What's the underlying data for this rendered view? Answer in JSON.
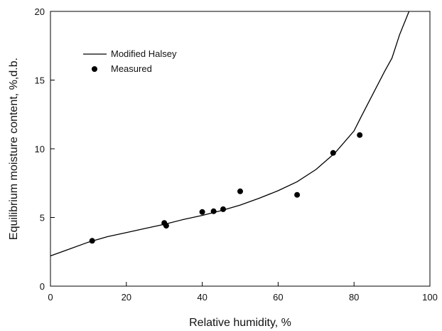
{
  "chart_data": {
    "type": "line",
    "title": "",
    "xlabel": "Relative humidity, %",
    "ylabel": "Equilibrium moisture content, %,d.b.",
    "xlim": [
      0,
      100
    ],
    "ylim": [
      0,
      20
    ],
    "x_ticks": [
      "0",
      "20",
      "40",
      "60",
      "80",
      "100"
    ],
    "y_ticks": [
      "0",
      "5",
      "10",
      "15",
      "20"
    ],
    "grid": false,
    "legend_position": "top-left",
    "series": [
      {
        "name": "Modified Halsey",
        "kind": "line",
        "color": "#000000",
        "x": [
          0,
          5,
          10,
          15,
          20,
          25,
          30,
          35,
          40,
          45,
          50,
          55,
          60,
          65,
          70,
          75,
          80,
          82,
          85,
          88,
          90,
          92,
          94.5
        ],
        "y": [
          2.2,
          2.7,
          3.2,
          3.6,
          3.9,
          4.2,
          4.5,
          4.85,
          5.15,
          5.5,
          5.9,
          6.4,
          6.95,
          7.6,
          8.5,
          9.7,
          11.3,
          12.4,
          14.0,
          15.6,
          16.6,
          18.3,
          20.0
        ]
      },
      {
        "name": "Measured",
        "kind": "scatter",
        "color": "#000000",
        "x": [
          11,
          30,
          30.5,
          40,
          43,
          45.5,
          50,
          65,
          74.5,
          81.5
        ],
        "y": [
          3.3,
          4.6,
          4.4,
          5.4,
          5.45,
          5.6,
          6.9,
          6.65,
          9.7,
          11.0
        ]
      }
    ]
  }
}
